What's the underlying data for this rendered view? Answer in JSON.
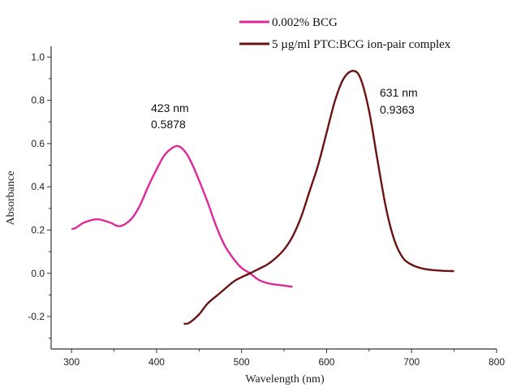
{
  "chart_data": {
    "type": "line",
    "title": "",
    "xlabel": "Wavelength (nm)",
    "ylabel": "Absorbance",
    "xlim": [
      276,
      800
    ],
    "ylim": [
      -0.35,
      1.05
    ],
    "xticks": [
      300,
      400,
      500,
      600,
      700,
      800
    ],
    "yticks": [
      -0.2,
      0.0,
      0.2,
      0.4,
      0.6,
      0.8,
      1.0
    ],
    "xtick_labels": [
      "300",
      "400",
      "500",
      "600",
      "700",
      "800"
    ],
    "ytick_labels": [
      "-0.2",
      "0.0",
      "0.2",
      "0.4",
      "0.6",
      "0.8",
      "1.0"
    ],
    "grid": false,
    "legend_position": "top-right",
    "series": [
      {
        "name": "0.002% BCG",
        "color": "#e0289a",
        "x": [
          300,
          305,
          315,
          330,
          345,
          357,
          370,
          380,
          390,
          400,
          410,
          423,
          432,
          440,
          450,
          460,
          470,
          480,
          490,
          500,
          510,
          520,
          530,
          540,
          550,
          560
        ],
        "y": [
          0.205,
          0.21,
          0.235,
          0.25,
          0.235,
          0.218,
          0.25,
          0.31,
          0.4,
          0.48,
          0.55,
          0.5878,
          0.57,
          0.52,
          0.43,
          0.33,
          0.22,
          0.13,
          0.07,
          0.025,
          0.0,
          -0.03,
          -0.045,
          -0.052,
          -0.057,
          -0.062
        ]
      },
      {
        "name": "5 µg/ml PTC:BCG ion-pair complex",
        "color": "#6b1212",
        "x": [
          432,
          438,
          450,
          460,
          475,
          490,
          500,
          510,
          520,
          530,
          540,
          550,
          560,
          570,
          580,
          590,
          600,
          610,
          620,
          631,
          640,
          650,
          660,
          670,
          680,
          690,
          700,
          710,
          720,
          735,
          750
        ],
        "y": [
          -0.233,
          -0.23,
          -0.19,
          -0.14,
          -0.09,
          -0.04,
          -0.018,
          0.0,
          0.02,
          0.04,
          0.07,
          0.11,
          0.17,
          0.26,
          0.38,
          0.5,
          0.65,
          0.8,
          0.9,
          0.9363,
          0.9,
          0.75,
          0.52,
          0.3,
          0.15,
          0.07,
          0.04,
          0.025,
          0.017,
          0.012,
          0.01
        ]
      }
    ],
    "annotations": [
      {
        "line1": "423 nm",
        "line2": "0.5878",
        "x": 423,
        "y": 0.5878
      },
      {
        "line1": "631 nm",
        "line2": "0.9363",
        "x": 631,
        "y": 0.9363
      }
    ]
  }
}
